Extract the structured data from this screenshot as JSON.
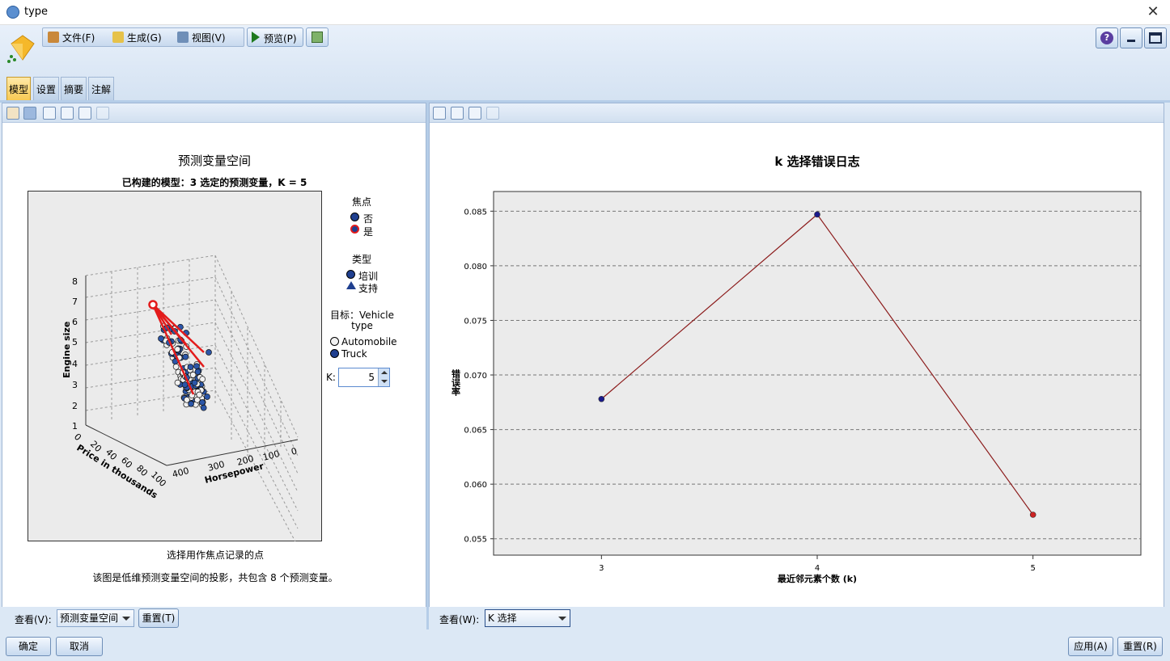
{
  "window": {
    "title": "type"
  },
  "menu": {
    "file": "文件(F)",
    "generate": "生成(G)",
    "view": "视图(V)",
    "preview": "预览(P)"
  },
  "tabs": [
    "模型",
    "设置",
    "摘要",
    "注解"
  ],
  "left_panel": {
    "title": "预测变量空间",
    "subtitle": "已构建的模型：3 选定的预测变量，K = 5",
    "caption1": "选择用作焦点记录的点",
    "caption2": "该图是低维预测变量空间的投影，共包含 8 个预测变量。",
    "axes": {
      "z_label": "Engine size",
      "x_label": "Price in thousands",
      "y_label": "Horsepower",
      "z_ticks": [
        "8",
        "7",
        "6",
        "5",
        "4",
        "3",
        "2",
        "1"
      ],
      "x_ticks": [
        "0",
        "20",
        "40",
        "60",
        "80",
        "100"
      ],
      "y_ticks": [
        "400",
        "300",
        "200",
        "100",
        "0"
      ]
    },
    "legend": {
      "focus_title": "焦点",
      "focus_no": "否",
      "focus_yes": "是",
      "type_title": "类型",
      "type_train": "培训",
      "type_support": "支持",
      "target_title": "目标：Vehicle type",
      "target_auto": "Automobile",
      "target_truck": "Truck",
      "k_label": "K:",
      "k_value": "5"
    },
    "view_label": "查看(V):",
    "view_value": "预测变量空间",
    "reset_button": "重置(T)"
  },
  "right_panel": {
    "view_label": "查看(W):",
    "view_value": "K 选择"
  },
  "chart_data": {
    "type": "line",
    "title": "k 选择错误日志",
    "xlabel": "最近邻元素个数 (k)",
    "ylabel": "错误率",
    "x": [
      3,
      4,
      5
    ],
    "values": [
      0.0678,
      0.0847,
      0.0572
    ],
    "point_colors": [
      "#1a1a8c",
      "#1a1a8c",
      "#cc2222"
    ],
    "line_color": "#8b1a1a",
    "ylim": [
      0.0535,
      0.0868
    ],
    "yticks": [
      0.055,
      0.06,
      0.065,
      0.07,
      0.075,
      0.08,
      0.085
    ],
    "ytick_labels": [
      "0.055",
      "0.060",
      "0.065",
      "0.070",
      "0.075",
      "0.080",
      "0.085"
    ],
    "grid": true
  },
  "footer": {
    "ok": "确定",
    "cancel": "取消",
    "apply": "应用(A)",
    "reset": "重置(R)"
  }
}
